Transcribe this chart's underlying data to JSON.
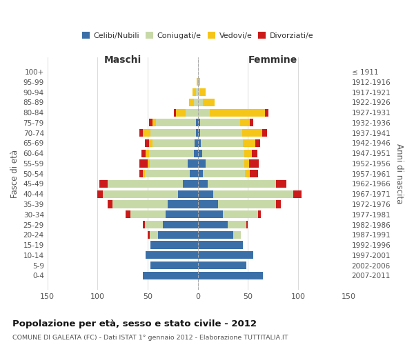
{
  "age_groups": [
    "0-4",
    "5-9",
    "10-14",
    "15-19",
    "20-24",
    "25-29",
    "30-34",
    "35-39",
    "40-44",
    "45-49",
    "50-54",
    "55-59",
    "60-64",
    "65-69",
    "70-74",
    "75-79",
    "80-84",
    "85-89",
    "90-94",
    "95-99",
    "100+"
  ],
  "birth_years": [
    "2007-2011",
    "2002-2006",
    "1997-2001",
    "1992-1996",
    "1987-1991",
    "1982-1986",
    "1977-1981",
    "1972-1976",
    "1967-1971",
    "1962-1966",
    "1957-1961",
    "1952-1956",
    "1947-1951",
    "1942-1946",
    "1937-1941",
    "1932-1936",
    "1927-1931",
    "1922-1926",
    "1917-1921",
    "1912-1916",
    "≤ 1911"
  ],
  "male": {
    "celibi": [
      55,
      47,
      52,
      47,
      40,
      35,
      32,
      30,
      20,
      15,
      8,
      10,
      4,
      3,
      2,
      2,
      0,
      0,
      0,
      0,
      0
    ],
    "coniugati": [
      0,
      0,
      0,
      0,
      8,
      18,
      35,
      55,
      75,
      75,
      45,
      38,
      45,
      42,
      45,
      40,
      12,
      4,
      2,
      0,
      0
    ],
    "vedovi": [
      0,
      0,
      0,
      0,
      0,
      0,
      0,
      0,
      0,
      0,
      2,
      2,
      3,
      4,
      8,
      3,
      10,
      5,
      3,
      1,
      0
    ],
    "divorziati": [
      0,
      0,
      0,
      0,
      2,
      2,
      5,
      5,
      5,
      8,
      3,
      8,
      4,
      4,
      3,
      4,
      2,
      0,
      0,
      0,
      0
    ]
  },
  "female": {
    "nubili": [
      65,
      48,
      55,
      45,
      35,
      30,
      25,
      20,
      15,
      10,
      5,
      8,
      4,
      3,
      2,
      2,
      0,
      0,
      0,
      0,
      0
    ],
    "coniugate": [
      0,
      0,
      0,
      0,
      8,
      18,
      35,
      58,
      80,
      68,
      42,
      38,
      42,
      42,
      42,
      40,
      12,
      5,
      2,
      0,
      0
    ],
    "vedove": [
      0,
      0,
      0,
      0,
      0,
      0,
      0,
      0,
      0,
      0,
      5,
      5,
      8,
      12,
      20,
      10,
      55,
      12,
      6,
      2,
      0
    ],
    "divorziate": [
      0,
      0,
      0,
      0,
      0,
      2,
      3,
      5,
      8,
      10,
      8,
      10,
      5,
      5,
      5,
      3,
      3,
      0,
      0,
      0,
      0
    ]
  },
  "colors": {
    "celibi": "#3a6fa8",
    "coniugati": "#c8d9a8",
    "vedovi": "#f5c518",
    "divorziati": "#cc1a1a"
  },
  "legend_labels": [
    "Celibi/Nubili",
    "Coniugati/e",
    "Vedovi/e",
    "Divorziati/e"
  ],
  "title": "Popolazione per età, sesso e stato civile - 2012",
  "subtitle": "COMUNE DI GALEATA (FC) - Dati ISTAT 1° gennaio 2012 - Elaborazione TUTTITALIA.IT",
  "label_maschi": "Maschi",
  "label_femmine": "Femmine",
  "ylabel_left": "Fasce di età",
  "ylabel_right": "Anni di nascita",
  "xlim": 150,
  "background_color": "#ffffff",
  "grid_color": "#cccccc"
}
